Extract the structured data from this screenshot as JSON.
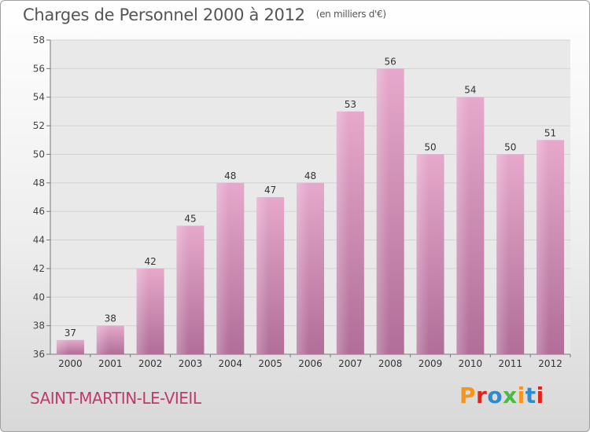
{
  "header": {
    "title": "Charges de Personnel 2000 à 2012",
    "unit": "(en milliers d'€)"
  },
  "footer": {
    "town": "SAINT-MARTIN-LE-VIEIL",
    "brand": "Proxiti",
    "brand_colors": [
      "#f7941d",
      "#e2231a",
      "#2e8bcc",
      "#4cb848",
      "#f7941d",
      "#2e8bcc",
      "#e2231a"
    ]
  },
  "chart_data": {
    "type": "bar",
    "title": "Charges de Personnel 2000 à 2012",
    "subtitle": "(en milliers d'€)",
    "categories": [
      "2000",
      "2001",
      "2002",
      "2003",
      "2004",
      "2005",
      "2006",
      "2007",
      "2008",
      "2009",
      "2010",
      "2011",
      "2012"
    ],
    "values": [
      37,
      38,
      42,
      45,
      48,
      47,
      48,
      53,
      56,
      50,
      54,
      50,
      51
    ],
    "ylim": [
      36,
      58
    ],
    "yticks": [
      36,
      38,
      40,
      42,
      44,
      46,
      48,
      50,
      52,
      54,
      56,
      58
    ],
    "grid": true,
    "bar_color": "#d98bb4"
  }
}
